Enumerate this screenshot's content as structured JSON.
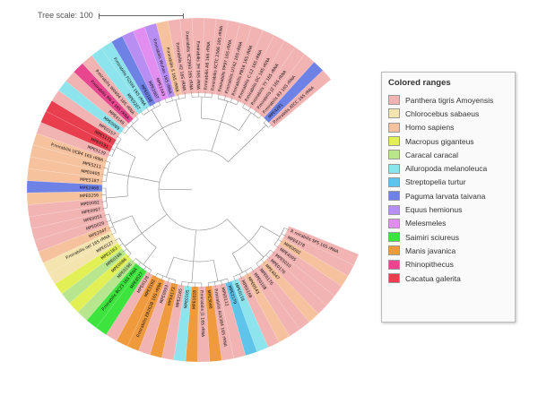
{
  "tree_scale": {
    "label": "Tree scale: 100"
  },
  "legend": {
    "title": "Colored ranges",
    "items": [
      {
        "label": "Panthera tigris Amoyensis",
        "color": "#f2b3b3"
      },
      {
        "label": "Chlorocebus sabaeus",
        "color": "#f4e4b0"
      },
      {
        "label": "Homo sapiens",
        "color": "#f6c29e"
      },
      {
        "label": "Macropus giganteus",
        "color": "#e2ef55"
      },
      {
        "label": "Caracal caracal",
        "color": "#b8e68e"
      },
      {
        "label": "Ailuropoda melanoleuca",
        "color": "#8ee4ec"
      },
      {
        "label": "Streptopelia turtur",
        "color": "#5fc4ea"
      },
      {
        "label": "Paguma larvata taivana",
        "color": "#6e82e6"
      },
      {
        "label": "Equus hemionus",
        "color": "#b98ef2"
      },
      {
        "label": "Melesmeles",
        "color": "#e28ef0"
      },
      {
        "label": "Saimiri sciureus",
        "color": "#3ee43e"
      },
      {
        "label": "Manis javanica",
        "color": "#f09a3e"
      },
      {
        "label": "Rhinopithecus",
        "color": "#e8468e"
      },
      {
        "label": "Cacatua galerita",
        "color": "#e83e4e"
      }
    ]
  },
  "tree": {
    "leaves": [
      {
        "label": "P. mirabilis SPS 16S rRNA",
        "group": 0
      },
      {
        "label": "MPE4378",
        "group": 0
      },
      {
        "label": "MPE0002",
        "group": 2
      },
      {
        "label": "MPE4095",
        "group": 0
      },
      {
        "label": "MPE5010",
        "group": 0
      },
      {
        "label": "MPE0176",
        "group": 0
      },
      {
        "label": "MPE4047",
        "group": 2
      },
      {
        "label": "MPE0176",
        "group": 0
      },
      {
        "label": "MPE0108",
        "group": 0
      },
      {
        "label": "MPE0543",
        "group": 2
      },
      {
        "label": "MPE0168",
        "group": 0
      },
      {
        "label": "MPE0158",
        "group": 5
      },
      {
        "label": "MPE2179",
        "group": 6
      },
      {
        "label": "MPE0112",
        "group": 0
      },
      {
        "label": "P.mirabilis ALK384 16S rRNA",
        "group": 0
      },
      {
        "label": "MPE3046",
        "group": 11
      },
      {
        "label": "P.mirabilis J1 16S rRNA",
        "group": 0
      },
      {
        "label": "MPE1028",
        "group": 11
      },
      {
        "label": "MPE0105",
        "group": 5
      },
      {
        "label": "MPE2165",
        "group": 0
      },
      {
        "label": "MPE4173",
        "group": 11
      },
      {
        "label": "MPE0093",
        "group": 0
      },
      {
        "label": "P.mirabilis EB262B 16S rRNA",
        "group": 11
      },
      {
        "label": "MPE3192",
        "group": 11
      },
      {
        "label": "MPE0128",
        "group": 0
      },
      {
        "label": "MPE0527",
        "group": 10
      },
      {
        "label": "P.mirabilis BC23 16S rRNA",
        "group": 10
      },
      {
        "label": "MPE0196",
        "group": 4
      },
      {
        "label": "MPE0086",
        "group": 3
      },
      {
        "label": "MPE0166",
        "group": 4
      },
      {
        "label": "MPE2163",
        "group": 3
      },
      {
        "label": "MPE0127",
        "group": 1
      },
      {
        "label": "P.mirabilis oel 16S rRNA",
        "group": 1
      },
      {
        "label": "MPE2047",
        "group": 2
      },
      {
        "label": "MPE0029",
        "group": 0
      },
      {
        "label": "MPE0051",
        "group": 0
      },
      {
        "label": "MPE0067",
        "group": 0
      },
      {
        "label": "MPE0082",
        "group": 0
      },
      {
        "label": "MPE0256",
        "group": 2
      },
      {
        "label": "MPE2468",
        "group": 7
      },
      {
        "label": "MPE5187",
        "group": 2
      },
      {
        "label": "MPE0405",
        "group": 2
      },
      {
        "label": "MPE5211",
        "group": 2
      },
      {
        "label": "P.mirabilis UCB4 16S rRNA",
        "group": 2
      },
      {
        "label": "MPE5139",
        "group": 0
      },
      {
        "label": "MPE0191",
        "group": 13
      },
      {
        "label": "MPE5171",
        "group": 13
      },
      {
        "label": "MPE0157",
        "group": 0
      },
      {
        "label": "MPE0069",
        "group": 5
      },
      {
        "label": "MPE4149",
        "group": 0
      },
      {
        "label": "P.mirabilis RN-4 16S rRNA",
        "group": 12
      },
      {
        "label": "P.mirabilis W0494 16S rRNA",
        "group": 0
      },
      {
        "label": "MPE0207",
        "group": 5
      },
      {
        "label": "P.mirabilis FG594 16S rRNA",
        "group": 5
      },
      {
        "label": "MPE0108",
        "group": 7
      },
      {
        "label": "MPE2007",
        "group": 8
      },
      {
        "label": "MPE1043",
        "group": 9
      },
      {
        "label": "P.mirabilis Wuhan 16S rRNA",
        "group": 8
      },
      {
        "label": "P.mirabilis 5 16S rRNA",
        "group": 2
      },
      {
        "label": "P.mirabilis H2 16S rRNA",
        "group": 0
      },
      {
        "label": "P.mirabilis YC2993 16S rRNA",
        "group": 0
      },
      {
        "label": "P.mirabilis 3H 16S rRNA",
        "group": 0
      },
      {
        "label": "P.mirabilis A6 16S rRNA",
        "group": 0
      },
      {
        "label": "P.mirabilis KCTC 2566 16S rRNA",
        "group": 0
      },
      {
        "label": "P.mirabilis PP97 16S rRNA",
        "group": 0
      },
      {
        "label": "P.mirabilis U742 16S rRNA",
        "group": 0
      },
      {
        "label": "P.mirabilis PB16 16S rRNA",
        "group": 0
      },
      {
        "label": "P.mirabilis C-12 16S rRNA",
        "group": 0
      },
      {
        "label": "P.mirabilis DC 16S rRNA",
        "group": 0
      },
      {
        "label": "P.mirabilis 7Y 16S rRNA",
        "group": 0
      },
      {
        "label": "P.mirabilis J2 16S rRNA",
        "group": 0
      },
      {
        "label": "P.mirabilis B3 16S rRNA",
        "group": 0
      },
      {
        "label": "MPE4281",
        "group": 7
      },
      {
        "label": "P.mirabilis ATCC 16S rRNA",
        "group": 0
      }
    ]
  }
}
